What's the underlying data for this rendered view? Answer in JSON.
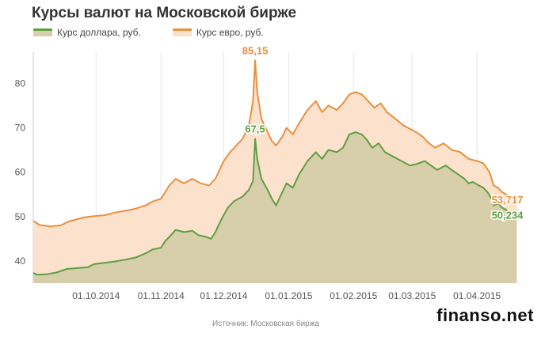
{
  "header": {
    "title": "Курсы валют на Московской бирже"
  },
  "legend": {
    "usd_label": "Курс доллара, руб.",
    "eur_label": "Курс евро, руб."
  },
  "footer": {
    "source": "Источник: Московская биржа",
    "watermark": "finanso.net"
  },
  "colors": {
    "usd_line": "#5f9e43",
    "usd_fill": "#d7ceaa",
    "eur_line": "#ea8f3f",
    "eur_fill": "#fce2cc",
    "grid": "#e6e6e6",
    "axis_text": "#555555"
  },
  "chart_data": {
    "type": "area",
    "ylim": [
      35,
      87
    ],
    "yticks": [
      40,
      50,
      60,
      70,
      80
    ],
    "x_range": [
      "2014-09-01",
      "2015-04-21"
    ],
    "xticks": [
      {
        "date": "2014-10-01",
        "label": "01.10.2014"
      },
      {
        "date": "2014-11-01",
        "label": "01.11.2014"
      },
      {
        "date": "2014-12-01",
        "label": "01.12.2014"
      },
      {
        "date": "2015-01-01",
        "label": "01.01.2015"
      },
      {
        "date": "2015-02-01",
        "label": "01.02.2015"
      },
      {
        "date": "2015-03-01",
        "label": "01.03.2015"
      },
      {
        "date": "2015-04-01",
        "label": "01.04.2015"
      }
    ],
    "grid": "vertical",
    "series": [
      {
        "name": "Курс доллара, руб.",
        "points": [
          [
            "2014-09-01",
            37.3
          ],
          [
            "2014-09-03",
            36.9
          ],
          [
            "2014-09-07",
            37.0
          ],
          [
            "2014-09-12",
            37.4
          ],
          [
            "2014-09-17",
            38.2
          ],
          [
            "2014-09-22",
            38.4
          ],
          [
            "2014-09-27",
            38.6
          ],
          [
            "2014-09-30",
            39.3
          ],
          [
            "2014-10-05",
            39.6
          ],
          [
            "2014-10-10",
            39.9
          ],
          [
            "2014-10-15",
            40.3
          ],
          [
            "2014-10-20",
            40.8
          ],
          [
            "2014-10-25",
            41.8
          ],
          [
            "2014-10-28",
            42.6
          ],
          [
            "2014-11-01",
            43.0
          ],
          [
            "2014-11-03",
            44.5
          ],
          [
            "2014-11-05",
            45.4
          ],
          [
            "2014-11-08",
            47.0
          ],
          [
            "2014-11-12",
            46.5
          ],
          [
            "2014-11-16",
            46.8
          ],
          [
            "2014-11-19",
            45.8
          ],
          [
            "2014-11-22",
            45.5
          ],
          [
            "2014-11-25",
            45.0
          ],
          [
            "2014-11-27",
            46.5
          ],
          [
            "2014-11-30",
            49.5
          ],
          [
            "2014-12-03",
            52.0
          ],
          [
            "2014-12-06",
            53.5
          ],
          [
            "2014-12-10",
            54.5
          ],
          [
            "2014-12-13",
            56.0
          ],
          [
            "2014-12-15",
            58.0
          ],
          [
            "2014-12-16",
            67.5
          ],
          [
            "2014-12-17",
            63.0
          ],
          [
            "2014-12-19",
            58.5
          ],
          [
            "2014-12-22",
            56.0
          ],
          [
            "2014-12-24",
            54.0
          ],
          [
            "2014-12-26",
            52.5
          ],
          [
            "2014-12-29",
            55.5
          ],
          [
            "2014-12-31",
            57.5
          ],
          [
            "2015-01-03",
            56.5
          ],
          [
            "2015-01-06",
            59.5
          ],
          [
            "2015-01-10",
            62.5
          ],
          [
            "2015-01-14",
            64.5
          ],
          [
            "2015-01-17",
            63.0
          ],
          [
            "2015-01-20",
            65.0
          ],
          [
            "2015-01-24",
            64.5
          ],
          [
            "2015-01-27",
            65.5
          ],
          [
            "2015-01-30",
            68.5
          ],
          [
            "2015-02-02",
            69.0
          ],
          [
            "2015-02-05",
            68.5
          ],
          [
            "2015-02-07",
            67.5
          ],
          [
            "2015-02-10",
            65.5
          ],
          [
            "2015-02-13",
            66.5
          ],
          [
            "2015-02-16",
            64.5
          ],
          [
            "2015-02-20",
            63.5
          ],
          [
            "2015-02-24",
            62.5
          ],
          [
            "2015-02-28",
            61.5
          ],
          [
            "2015-03-03",
            61.8
          ],
          [
            "2015-03-07",
            62.5
          ],
          [
            "2015-03-10",
            61.5
          ],
          [
            "2015-03-13",
            60.5
          ],
          [
            "2015-03-17",
            61.5
          ],
          [
            "2015-03-20",
            60.5
          ],
          [
            "2015-03-23",
            59.5
          ],
          [
            "2015-03-26",
            58.5
          ],
          [
            "2015-03-28",
            57.5
          ],
          [
            "2015-03-30",
            57.8
          ],
          [
            "2015-04-02",
            57.0
          ],
          [
            "2015-04-04",
            56.5
          ],
          [
            "2015-04-06",
            55.5
          ],
          [
            "2015-04-08",
            54.0
          ],
          [
            "2015-04-09",
            52.5
          ],
          [
            "2015-04-11",
            53.0
          ],
          [
            "2015-04-13",
            52.0
          ],
          [
            "2015-04-15",
            51.5
          ],
          [
            "2015-04-17",
            50.0
          ],
          [
            "2015-04-20",
            50.234
          ]
        ],
        "annotations": [
          {
            "date": "2014-12-16",
            "text": "67,5"
          },
          {
            "date": "2015-04-20",
            "text": "50,234"
          }
        ]
      },
      {
        "name": "Курс евро, руб.",
        "points": [
          [
            "2014-09-01",
            49.0
          ],
          [
            "2014-09-04",
            48.1
          ],
          [
            "2014-09-09",
            47.8
          ],
          [
            "2014-09-14",
            48.0
          ],
          [
            "2014-09-18",
            48.9
          ],
          [
            "2014-09-22",
            49.4
          ],
          [
            "2014-09-25",
            49.8
          ],
          [
            "2014-09-30",
            50.1
          ],
          [
            "2014-10-05",
            50.3
          ],
          [
            "2014-10-10",
            50.9
          ],
          [
            "2014-10-15",
            51.3
          ],
          [
            "2014-10-20",
            51.8
          ],
          [
            "2014-10-25",
            52.6
          ],
          [
            "2014-10-28",
            53.4
          ],
          [
            "2014-11-01",
            54.0
          ],
          [
            "2014-11-03",
            55.5
          ],
          [
            "2014-11-05",
            57.0
          ],
          [
            "2014-11-08",
            58.5
          ],
          [
            "2014-11-12",
            57.5
          ],
          [
            "2014-11-16",
            58.5
          ],
          [
            "2014-11-20",
            57.5
          ],
          [
            "2014-11-24",
            57.0
          ],
          [
            "2014-11-27",
            58.5
          ],
          [
            "2014-12-01",
            62.5
          ],
          [
            "2014-12-04",
            64.5
          ],
          [
            "2014-12-07",
            66.0
          ],
          [
            "2014-12-10",
            67.5
          ],
          [
            "2014-12-13",
            70.5
          ],
          [
            "2014-12-15",
            76.0
          ],
          [
            "2014-12-16",
            85.15
          ],
          [
            "2014-12-17",
            78.0
          ],
          [
            "2014-12-19",
            72.0
          ],
          [
            "2014-12-22",
            69.0
          ],
          [
            "2014-12-24",
            67.0
          ],
          [
            "2014-12-26",
            66.0
          ],
          [
            "2014-12-29",
            68.0
          ],
          [
            "2014-12-31",
            70.0
          ],
          [
            "2015-01-03",
            68.5
          ],
          [
            "2015-01-06",
            71.0
          ],
          [
            "2015-01-10",
            74.0
          ],
          [
            "2015-01-14",
            76.0
          ],
          [
            "2015-01-17",
            73.5
          ],
          [
            "2015-01-20",
            75.0
          ],
          [
            "2015-01-24",
            74.0
          ],
          [
            "2015-01-27",
            75.5
          ],
          [
            "2015-01-30",
            77.5
          ],
          [
            "2015-02-02",
            78.0
          ],
          [
            "2015-02-05",
            77.5
          ],
          [
            "2015-02-08",
            76.0
          ],
          [
            "2015-02-11",
            74.5
          ],
          [
            "2015-02-14",
            75.5
          ],
          [
            "2015-02-17",
            73.5
          ],
          [
            "2015-02-21",
            72.0
          ],
          [
            "2015-02-25",
            70.5
          ],
          [
            "2015-03-01",
            69.5
          ],
          [
            "2015-03-03",
            69.0
          ],
          [
            "2015-03-06",
            68.0
          ],
          [
            "2015-03-09",
            66.5
          ],
          [
            "2015-03-12",
            65.5
          ],
          [
            "2015-03-16",
            66.5
          ],
          [
            "2015-03-20",
            65.0
          ],
          [
            "2015-03-24",
            64.5
          ],
          [
            "2015-03-28",
            63.0
          ],
          [
            "2015-04-01",
            62.5
          ],
          [
            "2015-04-04",
            62.0
          ],
          [
            "2015-04-07",
            60.0
          ],
          [
            "2015-04-09",
            57.0
          ],
          [
            "2015-04-11",
            56.5
          ],
          [
            "2015-04-13",
            55.5
          ],
          [
            "2015-04-15",
            55.0
          ],
          [
            "2015-04-17",
            54.2
          ],
          [
            "2015-04-20",
            53.717
          ]
        ],
        "annotations": [
          {
            "date": "2014-12-16",
            "text": "85,15"
          },
          {
            "date": "2015-04-20",
            "text": "53,717"
          }
        ]
      }
    ]
  }
}
